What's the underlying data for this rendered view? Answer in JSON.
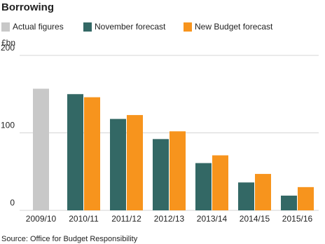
{
  "chart_data": {
    "type": "bar",
    "title": "Borrowing",
    "y_label": "£bn",
    "categories": [
      "2009/10",
      "2010/11",
      "2011/12",
      "2012/13",
      "2013/14",
      "2014/15",
      "2015/16"
    ],
    "series": [
      {
        "name": "Actual figures",
        "color": "#c8c8c8",
        "values": [
          157,
          null,
          null,
          null,
          null,
          null,
          null
        ]
      },
      {
        "name": "November forecast",
        "color": "#336865",
        "values": [
          null,
          150,
          118,
          92,
          61,
          36,
          19
        ]
      },
      {
        "name": "New Budget forecast",
        "color": "#f7941d",
        "values": [
          null,
          146,
          123,
          102,
          71,
          47,
          30
        ]
      }
    ],
    "ylim": [
      0,
      200
    ],
    "yticks": [
      0,
      100,
      200
    ],
    "grid": true,
    "source": "Source: Office for Budget Responsibility"
  }
}
